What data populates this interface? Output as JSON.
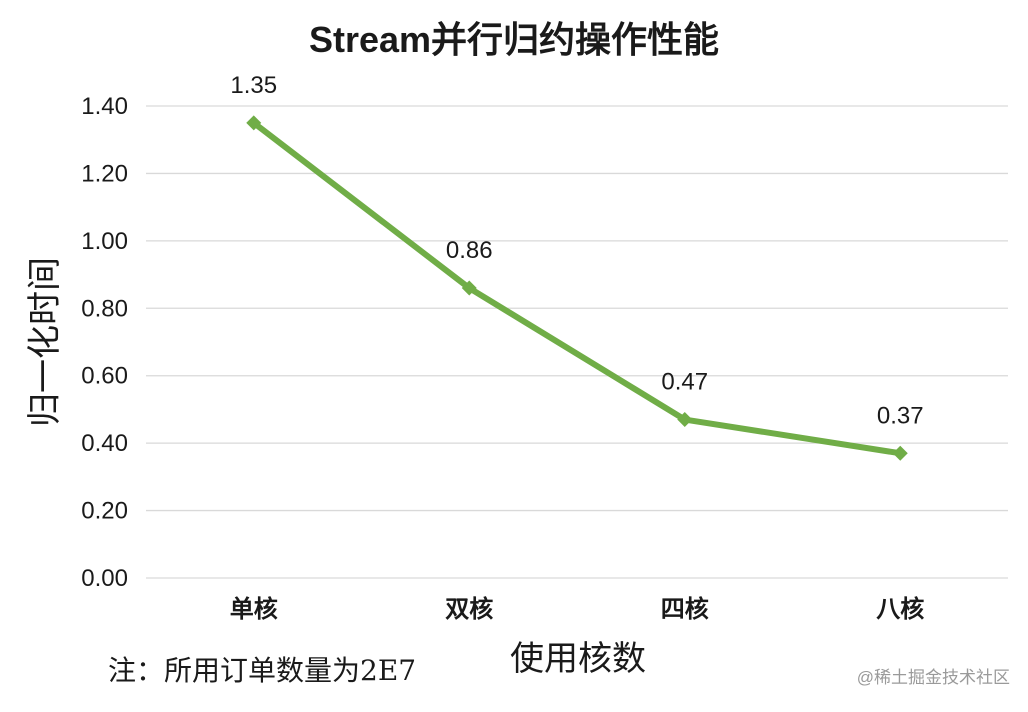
{
  "chart_data": {
    "type": "line",
    "title": "Stream并行归约操作性能",
    "xlabel": "使用核数",
    "ylabel": "归一化时间",
    "categories": [
      "单核",
      "双核",
      "四核",
      "八核"
    ],
    "series": [
      {
        "values": [
          1.35,
          0.86,
          0.47,
          0.37
        ],
        "data_labels": [
          "1.35",
          "0.86",
          "0.47",
          "0.37"
        ],
        "color": "#70ad47",
        "marker": "diamond"
      }
    ],
    "ylim": [
      0,
      1.4
    ],
    "yticks": [
      "0.00",
      "0.20",
      "0.40",
      "0.60",
      "0.80",
      "1.00",
      "1.20",
      "1.40"
    ],
    "grid": true,
    "legend": "none"
  },
  "note": "注：所用订单数量为2E7",
  "watermark": "@稀土掘金技术社区"
}
